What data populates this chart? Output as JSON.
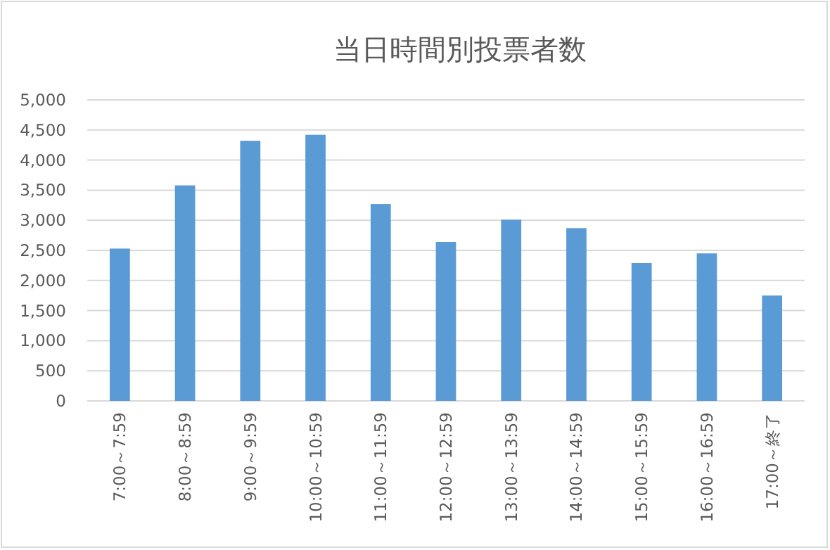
{
  "chart_data": {
    "type": "bar",
    "title": "当日時間別投票者数",
    "categories": [
      "7:00～7:59",
      "8:00～8:59",
      "9:00～9:59",
      "10:00～10:59",
      "11:00～11:59",
      "12:00～12:59",
      "13:00～13:59",
      "14:00～14:59",
      "15:00～15:59",
      "16:00～16:59",
      "17:00～終了"
    ],
    "values": [
      2530,
      3580,
      4320,
      4420,
      3270,
      2640,
      3010,
      2870,
      2290,
      2450,
      1750
    ],
    "color": "#5b9bd5",
    "ylim": [
      0,
      5000
    ],
    "yticks": [
      {
        "value": 0,
        "label": "0"
      },
      {
        "value": 500,
        "label": "500"
      },
      {
        "value": 1000,
        "label": "1,000"
      },
      {
        "value": 1500,
        "label": "1,500"
      },
      {
        "value": 2000,
        "label": "2,000"
      },
      {
        "value": 2500,
        "label": "2,500"
      },
      {
        "value": 3000,
        "label": "3,000"
      },
      {
        "value": 3500,
        "label": "3,500"
      },
      {
        "value": 4000,
        "label": "4,000"
      },
      {
        "value": 4500,
        "label": "4,500"
      },
      {
        "value": 5000,
        "label": "5,000"
      }
    ],
    "grid": "y"
  }
}
